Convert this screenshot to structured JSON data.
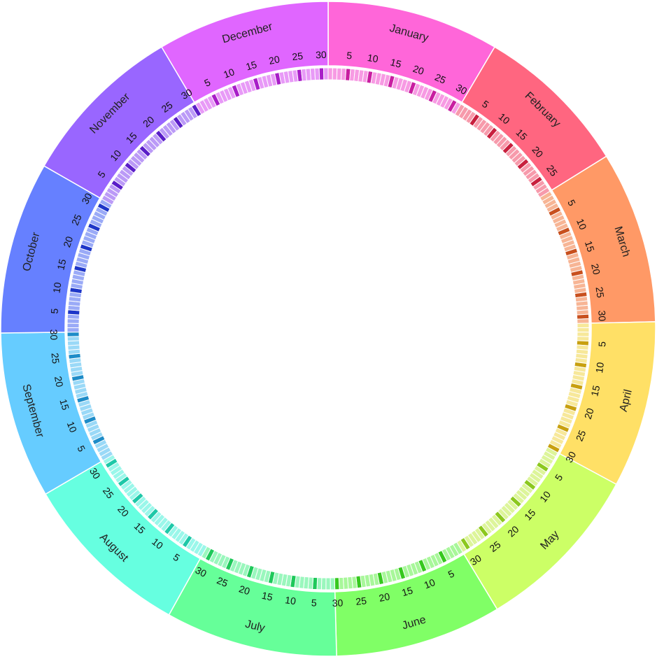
{
  "diagram": {
    "type": "circular-year-calendar",
    "months": [
      {
        "name": "January",
        "days": 31,
        "color": "#FF66D9",
        "tick": "#F79AE3",
        "major": "#C81EA0"
      },
      {
        "name": "February",
        "days": 28,
        "color": "#FF6680",
        "tick": "#F79AAB",
        "major": "#C8203E"
      },
      {
        "name": "March",
        "days": 31,
        "color": "#FF9966",
        "tick": "#F7B595",
        "major": "#C8501E"
      },
      {
        "name": "April",
        "days": 30,
        "color": "#FFE066",
        "tick": "#F7E89A",
        "major": "#C8A010"
      },
      {
        "name": "May",
        "days": 31,
        "color": "#CCFF66",
        "tick": "#DDF59A",
        "major": "#8CC81E"
      },
      {
        "name": "June",
        "days": 30,
        "color": "#80FF66",
        "tick": "#A8F79A",
        "major": "#36C81E"
      },
      {
        "name": "July",
        "days": 31,
        "color": "#66FF99",
        "tick": "#9AF7BD",
        "major": "#1EC85A"
      },
      {
        "name": "August",
        "days": 31,
        "color": "#66FFE0",
        "tick": "#9AF7EA",
        "major": "#1EC8A8"
      },
      {
        "name": "September",
        "days": 30,
        "color": "#66CCFF",
        "tick": "#9AD9F7",
        "major": "#1E8CC8"
      },
      {
        "name": "October",
        "days": 31,
        "color": "#6680FF",
        "tick": "#9AAAF7",
        "major": "#1E36C8"
      },
      {
        "name": "November",
        "days": 30,
        "color": "#9966FF",
        "tick": "#BB9AF7",
        "major": "#5A1EC8"
      },
      {
        "name": "December",
        "days": 31,
        "color": "#E066FF",
        "tick": "#E89AF7",
        "major": "#A81EC8"
      }
    ],
    "day_labels": [
      "5",
      "10",
      "15",
      "20",
      "25",
      "30"
    ]
  }
}
